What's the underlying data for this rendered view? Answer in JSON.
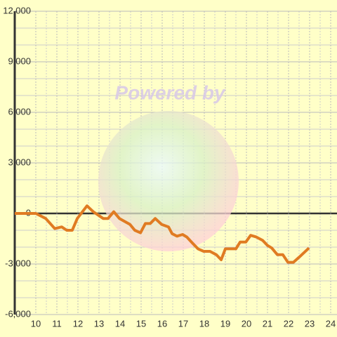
{
  "chart_data": {
    "type": "line",
    "watermark": "Powered by",
    "x": [
      9,
      10,
      10.47,
      10.9,
      11.23,
      11.47,
      11.73,
      11.97,
      12.43,
      12.73,
      13.2,
      13.43,
      13.7,
      13.97,
      14.47,
      14.7,
      14.97,
      15.2,
      15.43,
      15.67,
      15.97,
      16.3,
      16.47,
      16.7,
      16.97,
      17.17,
      17.43,
      17.7,
      17.97,
      18.27,
      18.57,
      18.8,
      19,
      19.27,
      19.5,
      19.7,
      19.97,
      20.2,
      20.47,
      20.77,
      21,
      21.2,
      21.47,
      21.73,
      21.97,
      22.23,
      22.5,
      22.97
    ],
    "series": [
      {
        "color": "#e07b22",
        "values": [
          0,
          0,
          -300,
          -900,
          -800,
          -1000,
          -1000,
          -300,
          450,
          100,
          -300,
          -300,
          100,
          -300,
          -650,
          -1000,
          -1150,
          -600,
          -600,
          -300,
          -650,
          -800,
          -1200,
          -1350,
          -1250,
          -1400,
          -1750,
          -2100,
          -2250,
          -2250,
          -2450,
          -2750,
          -2100,
          -2100,
          -2100,
          -1700,
          -1700,
          -1300,
          -1400,
          -1600,
          -1900,
          -2050,
          -2450,
          -2450,
          -2900,
          -2900,
          -2600,
          -2050
        ]
      }
    ],
    "xlim": [
      9,
      24.3
    ],
    "xticks": [
      10,
      11,
      12,
      13,
      14,
      15,
      16,
      17,
      18,
      19,
      20,
      21,
      22,
      23,
      24
    ],
    "ylim": [
      -6000,
      12000
    ],
    "yticks": [
      {
        "value": -6000,
        "label": "-6,000"
      },
      {
        "value": -3000,
        "label": "-3,000"
      },
      0,
      {
        "value": 3000,
        "label": "3,000"
      },
      {
        "value": 6000,
        "label": "6,000"
      },
      {
        "value": 9000,
        "label": "9,000"
      },
      {
        "value": 12000,
        "label": "12,000"
      }
    ],
    "grid": true
  }
}
